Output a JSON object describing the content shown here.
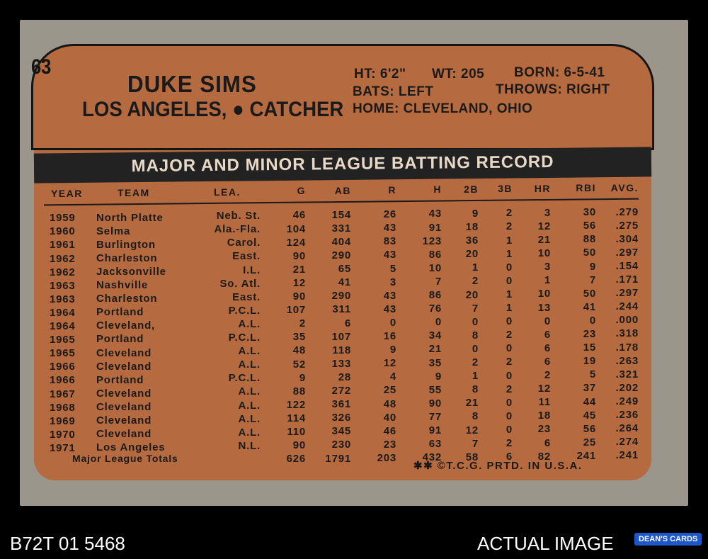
{
  "card": {
    "number": "63",
    "name": "DUKE SIMS",
    "team_position": "LOS ANGELES, ● CATCHER",
    "bio": {
      "ht": "HT: 6'2\"",
      "wt": "WT: 205",
      "born": "BORN: 6-5-41",
      "bats": "BATS: LEFT",
      "throws": "THROWS: RIGHT",
      "home": "HOME: CLEVELAND, OHIO"
    },
    "stats_title": "MAJOR AND MINOR LEAGUE BATTING RECORD",
    "headers": [
      "YEAR",
      "TEAM",
      "LEA.",
      "G",
      "AB",
      "R",
      "H",
      "2B",
      "3B",
      "HR",
      "RBI",
      "AVG."
    ],
    "rows": [
      {
        "year": "1959",
        "team": "North Platte",
        "lea": "Neb. St.",
        "g": "46",
        "ab": "154",
        "r": "26",
        "h": "43",
        "d": "9",
        "t": "2",
        "hr": "3",
        "rbi": "30",
        "avg": ".279"
      },
      {
        "year": "1960",
        "team": "Selma",
        "lea": "Ala.-Fla.",
        "g": "104",
        "ab": "331",
        "r": "43",
        "h": "91",
        "d": "18",
        "t": "2",
        "hr": "12",
        "rbi": "56",
        "avg": ".275"
      },
      {
        "year": "1961",
        "team": "Burlington",
        "lea": "Carol.",
        "g": "124",
        "ab": "404",
        "r": "83",
        "h": "123",
        "d": "36",
        "t": "1",
        "hr": "21",
        "rbi": "88",
        "avg": ".304"
      },
      {
        "year": "1962",
        "team": "Charleston",
        "lea": "East.",
        "g": "90",
        "ab": "290",
        "r": "43",
        "h": "86",
        "d": "20",
        "t": "1",
        "hr": "10",
        "rbi": "50",
        "avg": ".297"
      },
      {
        "year": "1962",
        "team": "Jacksonville",
        "lea": "I.L.",
        "g": "21",
        "ab": "65",
        "r": "5",
        "h": "10",
        "d": "1",
        "t": "0",
        "hr": "3",
        "rbi": "9",
        "avg": ".154"
      },
      {
        "year": "1963",
        "team": "Nashville",
        "lea": "So. Atl.",
        "g": "12",
        "ab": "41",
        "r": "3",
        "h": "7",
        "d": "2",
        "t": "0",
        "hr": "1",
        "rbi": "7",
        "avg": ".171"
      },
      {
        "year": "1963",
        "team": "Charleston",
        "lea": "East.",
        "g": "90",
        "ab": "290",
        "r": "43",
        "h": "86",
        "d": "20",
        "t": "1",
        "hr": "10",
        "rbi": "50",
        "avg": ".297"
      },
      {
        "year": "1964",
        "team": "Portland",
        "lea": "P.C.L.",
        "g": "107",
        "ab": "311",
        "r": "43",
        "h": "76",
        "d": "7",
        "t": "1",
        "hr": "13",
        "rbi": "41",
        "avg": ".244"
      },
      {
        "year": "1964",
        "team": "Cleveland,",
        "lea": "A.L.",
        "g": "2",
        "ab": "6",
        "r": "0",
        "h": "0",
        "d": "0",
        "t": "0",
        "hr": "0",
        "rbi": "0",
        "avg": ".000"
      },
      {
        "year": "1965",
        "team": "Portland",
        "lea": "P.C.L.",
        "g": "35",
        "ab": "107",
        "r": "16",
        "h": "34",
        "d": "8",
        "t": "2",
        "hr": "6",
        "rbi": "23",
        "avg": ".318"
      },
      {
        "year": "1965",
        "team": "Cleveland",
        "lea": "A.L.",
        "g": "48",
        "ab": "118",
        "r": "9",
        "h": "21",
        "d": "0",
        "t": "0",
        "hr": "6",
        "rbi": "15",
        "avg": ".178"
      },
      {
        "year": "1966",
        "team": "Cleveland",
        "lea": "A.L.",
        "g": "52",
        "ab": "133",
        "r": "12",
        "h": "35",
        "d": "2",
        "t": "2",
        "hr": "6",
        "rbi": "19",
        "avg": ".263"
      },
      {
        "year": "1966",
        "team": "Portland",
        "lea": "P.C.L.",
        "g": "9",
        "ab": "28",
        "r": "4",
        "h": "9",
        "d": "1",
        "t": "0",
        "hr": "2",
        "rbi": "5",
        "avg": ".321"
      },
      {
        "year": "1967",
        "team": "Cleveland",
        "lea": "A.L.",
        "g": "88",
        "ab": "272",
        "r": "25",
        "h": "55",
        "d": "8",
        "t": "2",
        "hr": "12",
        "rbi": "37",
        "avg": ".202"
      },
      {
        "year": "1968",
        "team": "Cleveland",
        "lea": "A.L.",
        "g": "122",
        "ab": "361",
        "r": "48",
        "h": "90",
        "d": "21",
        "t": "0",
        "hr": "11",
        "rbi": "44",
        "avg": ".249"
      },
      {
        "year": "1969",
        "team": "Cleveland",
        "lea": "A.L.",
        "g": "114",
        "ab": "326",
        "r": "40",
        "h": "77",
        "d": "8",
        "t": "0",
        "hr": "18",
        "rbi": "45",
        "avg": ".236"
      },
      {
        "year": "1970",
        "team": "Cleveland",
        "lea": "A.L.",
        "g": "110",
        "ab": "345",
        "r": "46",
        "h": "91",
        "d": "12",
        "t": "0",
        "hr": "23",
        "rbi": "56",
        "avg": ".264"
      },
      {
        "year": "1971",
        "team": "Los Angeles",
        "lea": "N.L.",
        "g": "90",
        "ab": "230",
        "r": "23",
        "h": "63",
        "d": "7",
        "t": "2",
        "hr": "6",
        "rbi": "25",
        "avg": ".274"
      }
    ],
    "totals": {
      "label": "Major League Totals",
      "g": "626",
      "ab": "1791",
      "r": "203",
      "h": "432",
      "d": "58",
      "t": "6",
      "hr": "82",
      "rbi": "241",
      "avg": ".241"
    },
    "copyright": "✱✱ ©T.C.G. PRTD. IN U.S.A."
  },
  "footer": {
    "inventory_code": "B72T 01 5468",
    "actual_image": "ACTUAL IMAGE",
    "logo_text": "DEAN'S CARDS"
  }
}
